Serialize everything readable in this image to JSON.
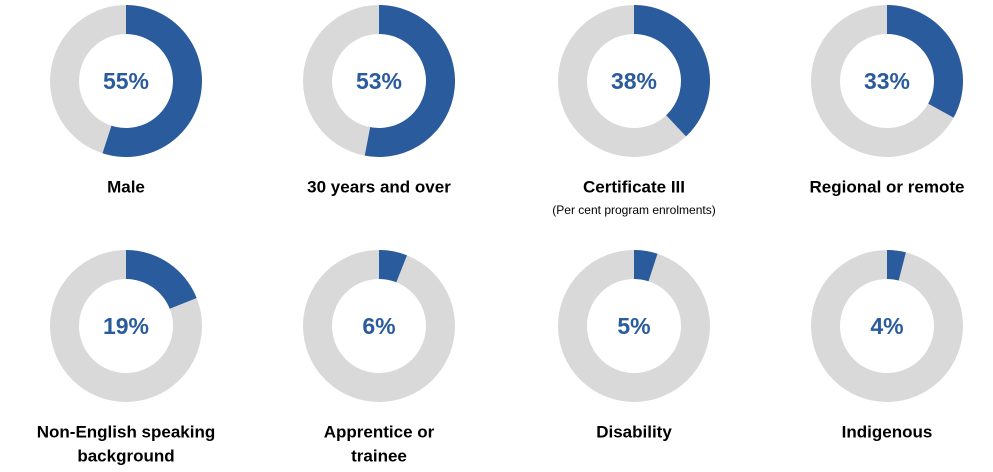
{
  "chart_data": [
    {
      "type": "donut",
      "values": [
        55
      ],
      "value_labels": [
        "55%"
      ],
      "label": "Male",
      "color": "#2a5b9c",
      "track_color": "#d9d9d9"
    },
    {
      "type": "donut",
      "values": [
        53
      ],
      "value_labels": [
        "53%"
      ],
      "label": "30 years and over",
      "color": "#2a5b9c",
      "track_color": "#d9d9d9"
    },
    {
      "type": "donut",
      "values": [
        38
      ],
      "value_labels": [
        "38%"
      ],
      "label": "Certificate III",
      "subtitle": "(Per cent program enrolments)",
      "color": "#2a5b9c",
      "track_color": "#d9d9d9"
    },
    {
      "type": "donut",
      "values": [
        33
      ],
      "value_labels": [
        "33%"
      ],
      "label": "Regional or remote",
      "color": "#2a5b9c",
      "track_color": "#d9d9d9"
    },
    {
      "type": "donut",
      "values": [
        19
      ],
      "value_labels": [
        "19%"
      ],
      "label": [
        "Non-English speaking",
        "background"
      ],
      "color": "#2a5b9c",
      "track_color": "#d9d9d9"
    },
    {
      "type": "donut",
      "values": [
        6
      ],
      "value_labels": [
        "6%"
      ],
      "label": [
        "Apprentice or",
        "trainee"
      ],
      "color": "#2a5b9c",
      "track_color": "#d9d9d9"
    },
    {
      "type": "donut",
      "values": [
        5
      ],
      "value_labels": [
        "5%"
      ],
      "label": "Disability",
      "color": "#2a5b9c",
      "track_color": "#d9d9d9"
    },
    {
      "type": "donut",
      "values": [
        4
      ],
      "value_labels": [
        "4%"
      ],
      "label": "Indigenous",
      "color": "#2a5b9c",
      "track_color": "#d9d9d9"
    }
  ]
}
